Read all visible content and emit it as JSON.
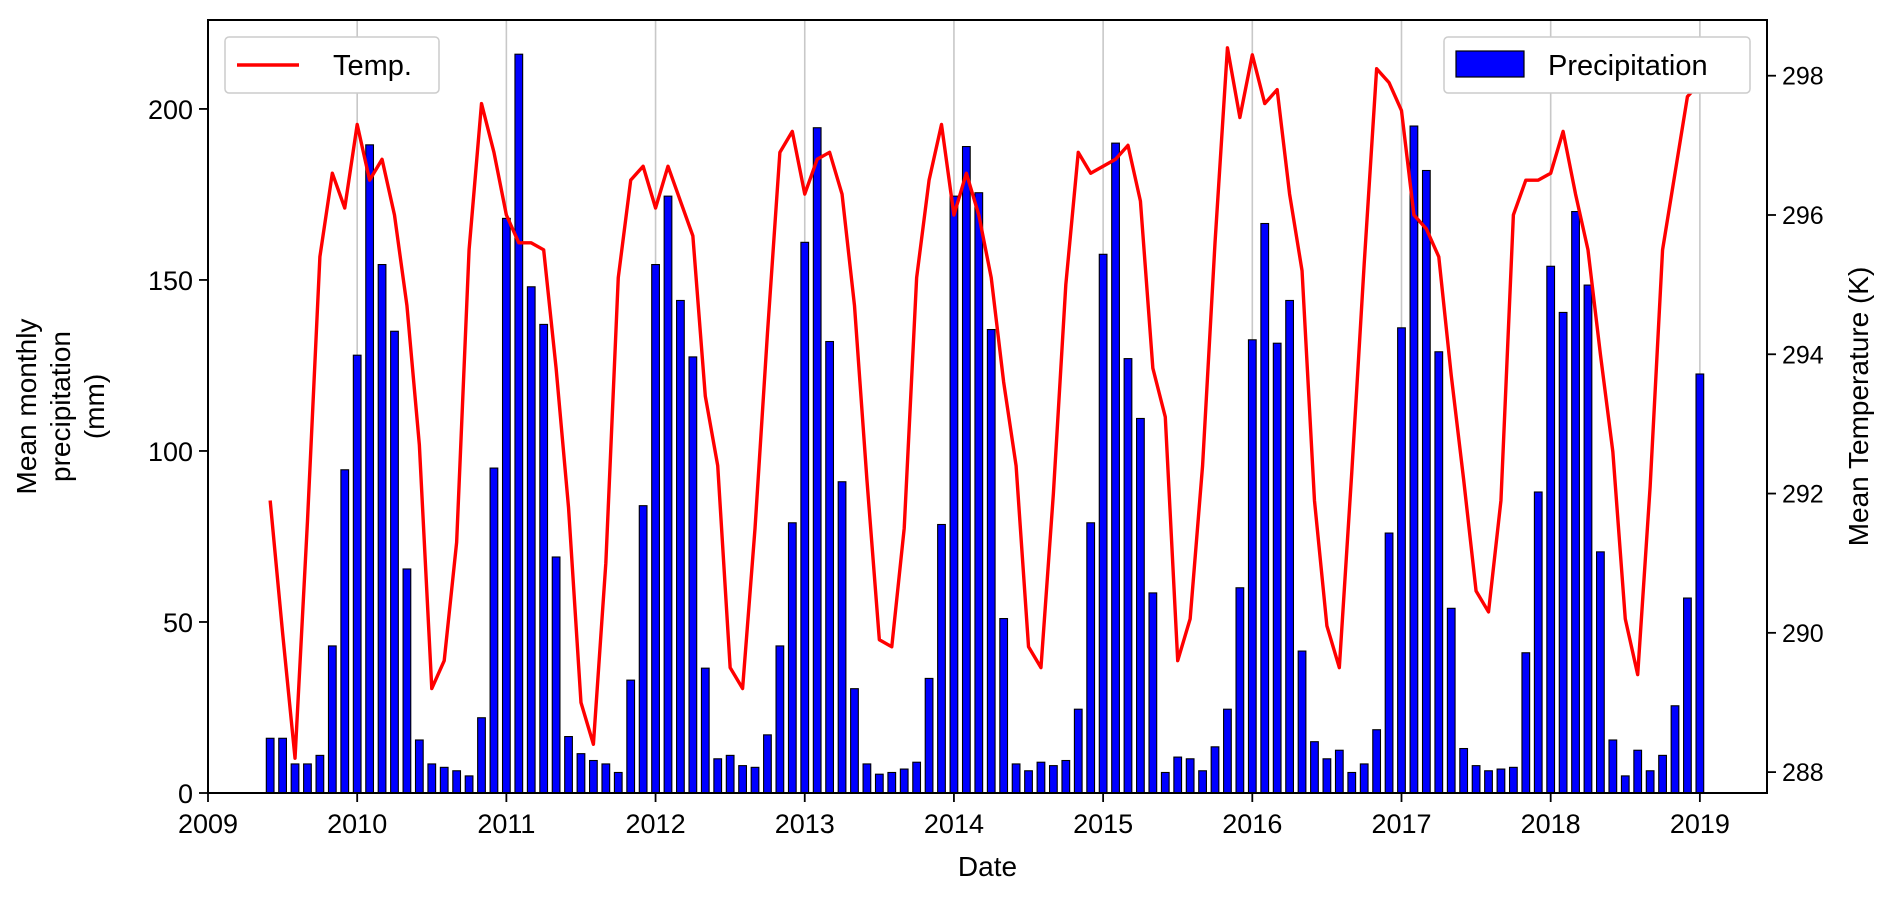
{
  "chart_data": {
    "type": "bar+line",
    "xlabel": "Date",
    "ylabel_lines": [
      "Mean monthly",
      "precipitation",
      "(mm)"
    ],
    "y2label": "Mean Temperature (K)",
    "xlim": [
      2009.0,
      2019.45
    ],
    "ylim": [
      0,
      226
    ],
    "y2lim": [
      287.7,
      298.8
    ],
    "x_ticks": [
      2009,
      2010,
      2011,
      2012,
      2013,
      2014,
      2015,
      2016,
      2017,
      2018,
      2019
    ],
    "x_tick_labels": [
      "2009",
      "2010",
      "2011",
      "2012",
      "2013",
      "2014",
      "2015",
      "2016",
      "2017",
      "2018",
      "2019"
    ],
    "y_ticks": [
      0,
      50,
      100,
      150,
      200
    ],
    "y_tick_labels": [
      "0",
      "50",
      "100",
      "150",
      "200"
    ],
    "y2_ticks": [
      288,
      290,
      292,
      294,
      296,
      298
    ],
    "y2_tick_labels": [
      "288",
      "290",
      "292",
      "294",
      "296",
      "298"
    ],
    "grid": "vertical",
    "x_start": "2009-06",
    "series": [
      {
        "name": "Precipitation",
        "kind": "bar",
        "color": "#0000ff",
        "edge_color": "#000000",
        "values": [
          16,
          16,
          8.5,
          8.5,
          11,
          43,
          94.5,
          128,
          189.5,
          154.5,
          135,
          65.5,
          15.5,
          8.5,
          7.5,
          6.5,
          5,
          22,
          95,
          168,
          216,
          148,
          137,
          69,
          16.5,
          11.5,
          9.5,
          8.5,
          6,
          33,
          84,
          154.5,
          174.5,
          144,
          127.5,
          36.5,
          10,
          11,
          8,
          7.5,
          17,
          43,
          79,
          161,
          194.5,
          132,
          91,
          30.5,
          8.5,
          5.5,
          6,
          7,
          9,
          33.5,
          78.5,
          174.5,
          189,
          175.5,
          135.5,
          51,
          8.5,
          6.5,
          9,
          8,
          9.5,
          24.5,
          79,
          157.5,
          190,
          127,
          109.5,
          58.5,
          6,
          10.5,
          10,
          6.5,
          13.5,
          24.5,
          60,
          132.5,
          166.5,
          131.5,
          144,
          41.5,
          15,
          10,
          12.5,
          6,
          8.5,
          18.5,
          76,
          136,
          195,
          182,
          129,
          54,
          13,
          8,
          6.5,
          7,
          7.5,
          41,
          88,
          154,
          140.5,
          170,
          148.5,
          70.5,
          15.5,
          5,
          12.5,
          6.5,
          11,
          25.5,
          57,
          122.5
        ]
      },
      {
        "name": "Temp.",
        "kind": "line",
        "axis": "right",
        "color": "#ff0000",
        "values": [
          291.9,
          290.0,
          288.2,
          291.6,
          295.4,
          296.6,
          296.1,
          297.3,
          296.5,
          296.8,
          296.0,
          294.7,
          292.7,
          289.2,
          289.6,
          291.3,
          295.5,
          297.6,
          296.9,
          296.0,
          295.6,
          295.6,
          295.5,
          293.8,
          291.8,
          289.0,
          288.4,
          291.0,
          295.1,
          296.5,
          296.7,
          296.1,
          296.7,
          296.2,
          295.7,
          293.4,
          292.4,
          289.5,
          289.2,
          291.5,
          294.3,
          296.9,
          297.2,
          296.3,
          296.8,
          296.9,
          296.3,
          294.7,
          292.2,
          289.9,
          289.8,
          291.5,
          295.1,
          296.5,
          297.3,
          296.0,
          296.6,
          296.0,
          295.1,
          293.6,
          292.4,
          289.8,
          289.5,
          292.0,
          295.0,
          296.9,
          296.6,
          296.7,
          296.8,
          297.0,
          296.2,
          293.8,
          293.1,
          289.6,
          290.2,
          292.4,
          295.6,
          298.4,
          297.4,
          298.3,
          297.6,
          297.8,
          296.3,
          295.2,
          291.9,
          290.1,
          289.5,
          292.3,
          295.3,
          298.1,
          297.9,
          297.5,
          296.0,
          295.8,
          295.4,
          293.7,
          292.2,
          290.6,
          290.3,
          291.9,
          296.0,
          296.5,
          296.5,
          296.6,
          297.2,
          296.3,
          295.5,
          294.0,
          292.6,
          290.2,
          289.4,
          292.1,
          295.5,
          296.6,
          297.7,
          297.9
        ]
      }
    ],
    "legends": [
      {
        "position": "top-left",
        "label": "Temp."
      },
      {
        "position": "top-right",
        "label": "Precipitation"
      }
    ]
  }
}
